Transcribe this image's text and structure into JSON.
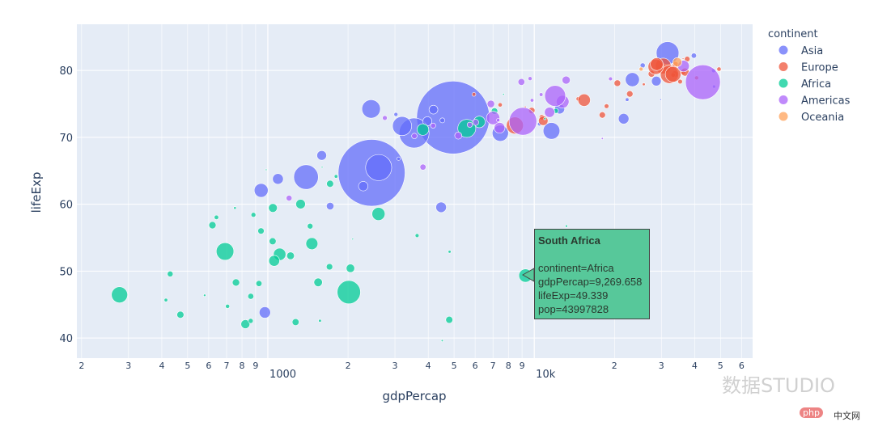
{
  "chart_data": {
    "type": "scatter",
    "xlabel": "gdpPercap",
    "ylabel": "lifeExp",
    "x_scale": "log",
    "xlim": [
      192,
      66000
    ],
    "ylim": [
      37,
      86.9
    ],
    "x_ticks": [
      {
        "v": 200,
        "l": "2"
      },
      {
        "v": 300,
        "l": "3"
      },
      {
        "v": 400,
        "l": "4"
      },
      {
        "v": 500,
        "l": "5"
      },
      {
        "v": 600,
        "l": "6"
      },
      {
        "v": 700,
        "l": "7"
      },
      {
        "v": 800,
        "l": "8"
      },
      {
        "v": 900,
        "l": "9"
      },
      {
        "v": 1000,
        "l": "1000"
      },
      {
        "v": 2000,
        "l": "2"
      },
      {
        "v": 3000,
        "l": "3"
      },
      {
        "v": 4000,
        "l": "4"
      },
      {
        "v": 5000,
        "l": "5"
      },
      {
        "v": 6000,
        "l": "6"
      },
      {
        "v": 7000,
        "l": "7"
      },
      {
        "v": 8000,
        "l": "8"
      },
      {
        "v": 9000,
        "l": "9"
      },
      {
        "v": 10000,
        "l": "10k"
      },
      {
        "v": 20000,
        "l": "2"
      },
      {
        "v": 30000,
        "l": "3"
      },
      {
        "v": 40000,
        "l": "4"
      },
      {
        "v": 50000,
        "l": "5"
      },
      {
        "v": 60000,
        "l": "6"
      }
    ],
    "y_ticks": [
      "40",
      "50",
      "60",
      "70",
      "80"
    ],
    "grid": true,
    "size_variable": "pop",
    "legend": {
      "title": "continent",
      "placement": "right"
    },
    "series": [
      {
        "name": "Asia",
        "color": "#636efa",
        "points": [
          [
            974.58,
            43.828,
            31889923
          ],
          [
            29796,
            75.635,
            708573
          ],
          [
            1391.25,
            64.062,
            150448339
          ],
          [
            1713.78,
            59.723,
            14131858
          ],
          [
            4959.11,
            72.961,
            1318683096
          ],
          [
            39724.98,
            82.208,
            6980412
          ],
          [
            2452.21,
            64.698,
            1110396331
          ],
          [
            3540.65,
            70.65,
            223547000
          ],
          [
            11605.71,
            70.964,
            69453570
          ],
          [
            4471.06,
            59.545,
            27499638
          ],
          [
            25523.28,
            80.745,
            6426679
          ],
          [
            31656.07,
            82.603,
            127467972
          ],
          [
            4519.46,
            72.535,
            6053193
          ],
          [
            1593.07,
            67.297,
            23301725
          ],
          [
            23348.14,
            78.623,
            49044790
          ],
          [
            47306.99,
            77.588,
            2505559
          ],
          [
            10461.06,
            71.993,
            3921278
          ],
          [
            12451.66,
            74.241,
            24821286
          ],
          [
            3095.77,
            66.803,
            2874127
          ],
          [
            944,
            62.069,
            47761980
          ],
          [
            1091.36,
            63.785,
            28901790
          ],
          [
            22316.19,
            75.64,
            3204897
          ],
          [
            2605.95,
            65.483,
            169270617
          ],
          [
            3190.48,
            71.688,
            91077287
          ],
          [
            21654.83,
            72.777,
            27601038
          ],
          [
            47143.18,
            79.972,
            4553009
          ],
          [
            3970.1,
            72.396,
            20378239
          ],
          [
            4184.55,
            74.143,
            19314747
          ],
          [
            28718.28,
            78.4,
            23174294
          ],
          [
            7458.4,
            70.616,
            65068149
          ],
          [
            2441.58,
            74.249,
            85262356
          ],
          [
            3025.35,
            73.422,
            4018332
          ],
          [
            2280.77,
            62.698,
            22211743
          ]
        ]
      },
      {
        "name": "Europe",
        "color": "#EF553B",
        "points": [
          [
            5937.03,
            76.423,
            3600523
          ],
          [
            36126.49,
            79.829,
            8199783
          ],
          [
            33692.61,
            79.441,
            10392226
          ],
          [
            7446.3,
            74.852,
            4552198
          ],
          [
            10680.79,
            73.005,
            7322858
          ],
          [
            14619.22,
            75.748,
            4493312
          ],
          [
            22833.31,
            76.486,
            10228744
          ],
          [
            35278.42,
            78.332,
            5468120
          ],
          [
            33207.08,
            79.313,
            5238460
          ],
          [
            30470.02,
            80.657,
            61083916
          ],
          [
            32170.37,
            79.406,
            82400996
          ],
          [
            27538.41,
            79.483,
            10706290
          ],
          [
            18008.94,
            73.338,
            9956108
          ],
          [
            36180.79,
            81.757,
            301931
          ],
          [
            40676,
            78.885,
            4109086
          ],
          [
            28569.72,
            80.546,
            58147733
          ],
          [
            9253.9,
            74.543,
            684736
          ],
          [
            36797.93,
            79.762,
            16570613
          ],
          [
            49357.19,
            80.196,
            4627926
          ],
          [
            15389.92,
            75.563,
            38518241
          ],
          [
            20509.65,
            78.098,
            10642836
          ],
          [
            10808.48,
            72.476,
            22276056
          ],
          [
            9786.53,
            74.002,
            10150265
          ],
          [
            18678.31,
            74.663,
            5447502
          ],
          [
            25768.26,
            77.926,
            2009245
          ],
          [
            28821.06,
            80.941,
            40448191
          ],
          [
            33859.75,
            80.884,
            9031088
          ],
          [
            37506.42,
            81.701,
            7554661
          ],
          [
            8458.28,
            71.777,
            71158647
          ],
          [
            33203.26,
            79.425,
            60776238
          ]
        ]
      },
      {
        "name": "Africa",
        "color": "#00cc96",
        "points": [
          [
            6223.37,
            72.301,
            33333216
          ],
          [
            4797.23,
            42.731,
            12420476
          ],
          [
            1441.28,
            56.728,
            8078314
          ],
          [
            12569.85,
            50.728,
            1639131
          ],
          [
            1217.03,
            52.295,
            14326203
          ],
          [
            430.07,
            49.58,
            8390505
          ],
          [
            2042.1,
            50.43,
            17696293
          ],
          [
            706.02,
            44.741,
            4369038
          ],
          [
            1704.06,
            50.651,
            10238807
          ],
          [
            986.15,
            65.152,
            710960
          ],
          [
            277.55,
            46.462,
            64606759
          ],
          [
            3632.56,
            55.322,
            3800610
          ],
          [
            1544.75,
            48.328,
            18013409
          ],
          [
            2082.48,
            54.791,
            496374
          ],
          [
            5581.18,
            71.338,
            80264543
          ],
          [
            12154.09,
            51.579,
            551201
          ],
          [
            641.37,
            58.04,
            4906585
          ],
          [
            690.81,
            52.947,
            76511887
          ],
          [
            13206.48,
            56.735,
            1454867
          ],
          [
            752.75,
            59.448,
            1688359
          ],
          [
            1327.61,
            60.022,
            22873338
          ],
          [
            942.65,
            56.007,
            9947814
          ],
          [
            579.23,
            46.388,
            1472041
          ],
          [
            1463.25,
            54.11,
            35610177
          ],
          [
            1569.33,
            42.592,
            2012649
          ],
          [
            414.51,
            45.678,
            3193942
          ],
          [
            12057.5,
            73.952,
            6036914
          ],
          [
            1044.77,
            59.443,
            19167654
          ],
          [
            759.35,
            48.303,
            13327079
          ],
          [
            1042.58,
            54.467,
            12031795
          ],
          [
            1803.15,
            64.164,
            3270065
          ],
          [
            10956.99,
            72.801,
            1250882
          ],
          [
            3820.18,
            71.164,
            33757175
          ],
          [
            823.69,
            42.082,
            19951656
          ],
          [
            4811.06,
            52.906,
            2055080
          ],
          [
            619.68,
            56.867,
            12894865
          ],
          [
            2013.98,
            46.859,
            135031164
          ],
          [
            7670.12,
            76.442,
            798094
          ],
          [
            863.09,
            46.242,
            8860588
          ],
          [
            1598.44,
            65.528,
            199579
          ],
          [
            1712.47,
            63.062,
            12267493
          ],
          [
            862.54,
            42.568,
            6144562
          ],
          [
            926.14,
            48.159,
            9118773
          ],
          [
            9269.658,
            49.339,
            43997828
          ],
          [
            2602.39,
            58.556,
            42292929
          ],
          [
            4513.48,
            39.613,
            1133066
          ],
          [
            1107.48,
            52.517,
            38139640
          ],
          [
            882.97,
            58.42,
            5701579
          ],
          [
            7092.92,
            73.923,
            10276158
          ],
          [
            1056.38,
            51.542,
            29170398
          ],
          [
            1271.21,
            42.384,
            11746035
          ],
          [
            469.71,
            43.487,
            12311143
          ]
        ]
      },
      {
        "name": "Americas",
        "color": "#ab63fa",
        "points": [
          [
            12779.38,
            75.32,
            40301927
          ],
          [
            3822.14,
            65.554,
            9119152
          ],
          [
            9065.8,
            72.39,
            190010647
          ],
          [
            36319.24,
            80.653,
            33390141
          ],
          [
            13171.64,
            78.553,
            16284741
          ],
          [
            7006.58,
            72.889,
            44227550
          ],
          [
            9645.06,
            78.782,
            4133884
          ],
          [
            8948.1,
            78.273,
            11416987
          ],
          [
            6025.37,
            72.235,
            9319622
          ],
          [
            6873.26,
            74.994,
            13755680
          ],
          [
            5728.35,
            71.878,
            6939688
          ],
          [
            5186.05,
            70.259,
            12572928
          ],
          [
            1201.64,
            60.916,
            8502814
          ],
          [
            3548.33,
            70.198,
            7483763
          ],
          [
            7320.88,
            72.567,
            2780132
          ],
          [
            11977.57,
            76.195,
            108700891
          ],
          [
            2749.32,
            72.899,
            5675356
          ],
          [
            9809.19,
            75.537,
            3242173
          ],
          [
            4172.84,
            71.752,
            6667147
          ],
          [
            7408.91,
            71.421,
            28674757
          ],
          [
            19328.71,
            78.746,
            3942491
          ],
          [
            18008.51,
            69.819,
            1056608
          ],
          [
            42951.65,
            78.242,
            301139947
          ],
          [
            10611.46,
            76.384,
            3447496
          ],
          [
            11415.81,
            73.747,
            26084662
          ]
        ]
      },
      {
        "name": "Oceania",
        "color": "#FFA15A",
        "points": [
          [
            34435.37,
            81.235,
            20434176
          ],
          [
            25185.01,
            80.204,
            4115771
          ]
        ]
      }
    ]
  },
  "tooltip": {
    "title": "South Africa",
    "lines": [
      "continent=Africa",
      "gdpPercap=9,269.658",
      "lifeExp=49.339",
      "pop=43997828"
    ],
    "color": "#57c89a"
  },
  "watermark": {
    "text1": "数据STUDIO",
    "text2": "php",
    "text3": "中文网"
  }
}
